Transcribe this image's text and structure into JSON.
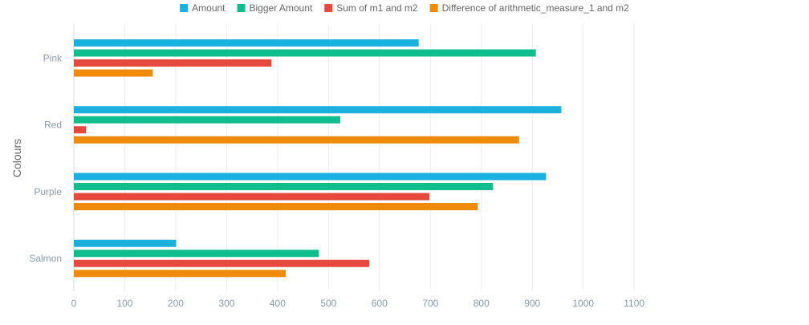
{
  "chart_data": {
    "type": "bar",
    "orientation": "horizontal",
    "categories": [
      "Pink",
      "Red",
      "Purple",
      "Salmon"
    ],
    "series": [
      {
        "name": "Amount",
        "color": "#1ab0e0",
        "values": [
          677,
          957,
          927,
          201
        ]
      },
      {
        "name": "Bigger Amount",
        "color": "#0fbe8c",
        "values": [
          907,
          523,
          823,
          481
        ]
      },
      {
        "name": "Sum of m1 and m2",
        "color": "#e8493f",
        "values": [
          388,
          24,
          698,
          580
        ]
      },
      {
        "name": "Difference of arithmetic_measure_1 and m2",
        "color": "#f08a0a",
        "values": [
          155,
          874,
          793,
          416
        ]
      }
    ],
    "title": "",
    "xlabel": "",
    "ylabel": "Colours",
    "xlim": [
      0,
      1100
    ],
    "xticks": [
      0,
      100,
      200,
      300,
      400,
      500,
      600,
      700,
      800,
      900,
      1000,
      1100
    ],
    "grid": true,
    "legend_position": "top"
  }
}
